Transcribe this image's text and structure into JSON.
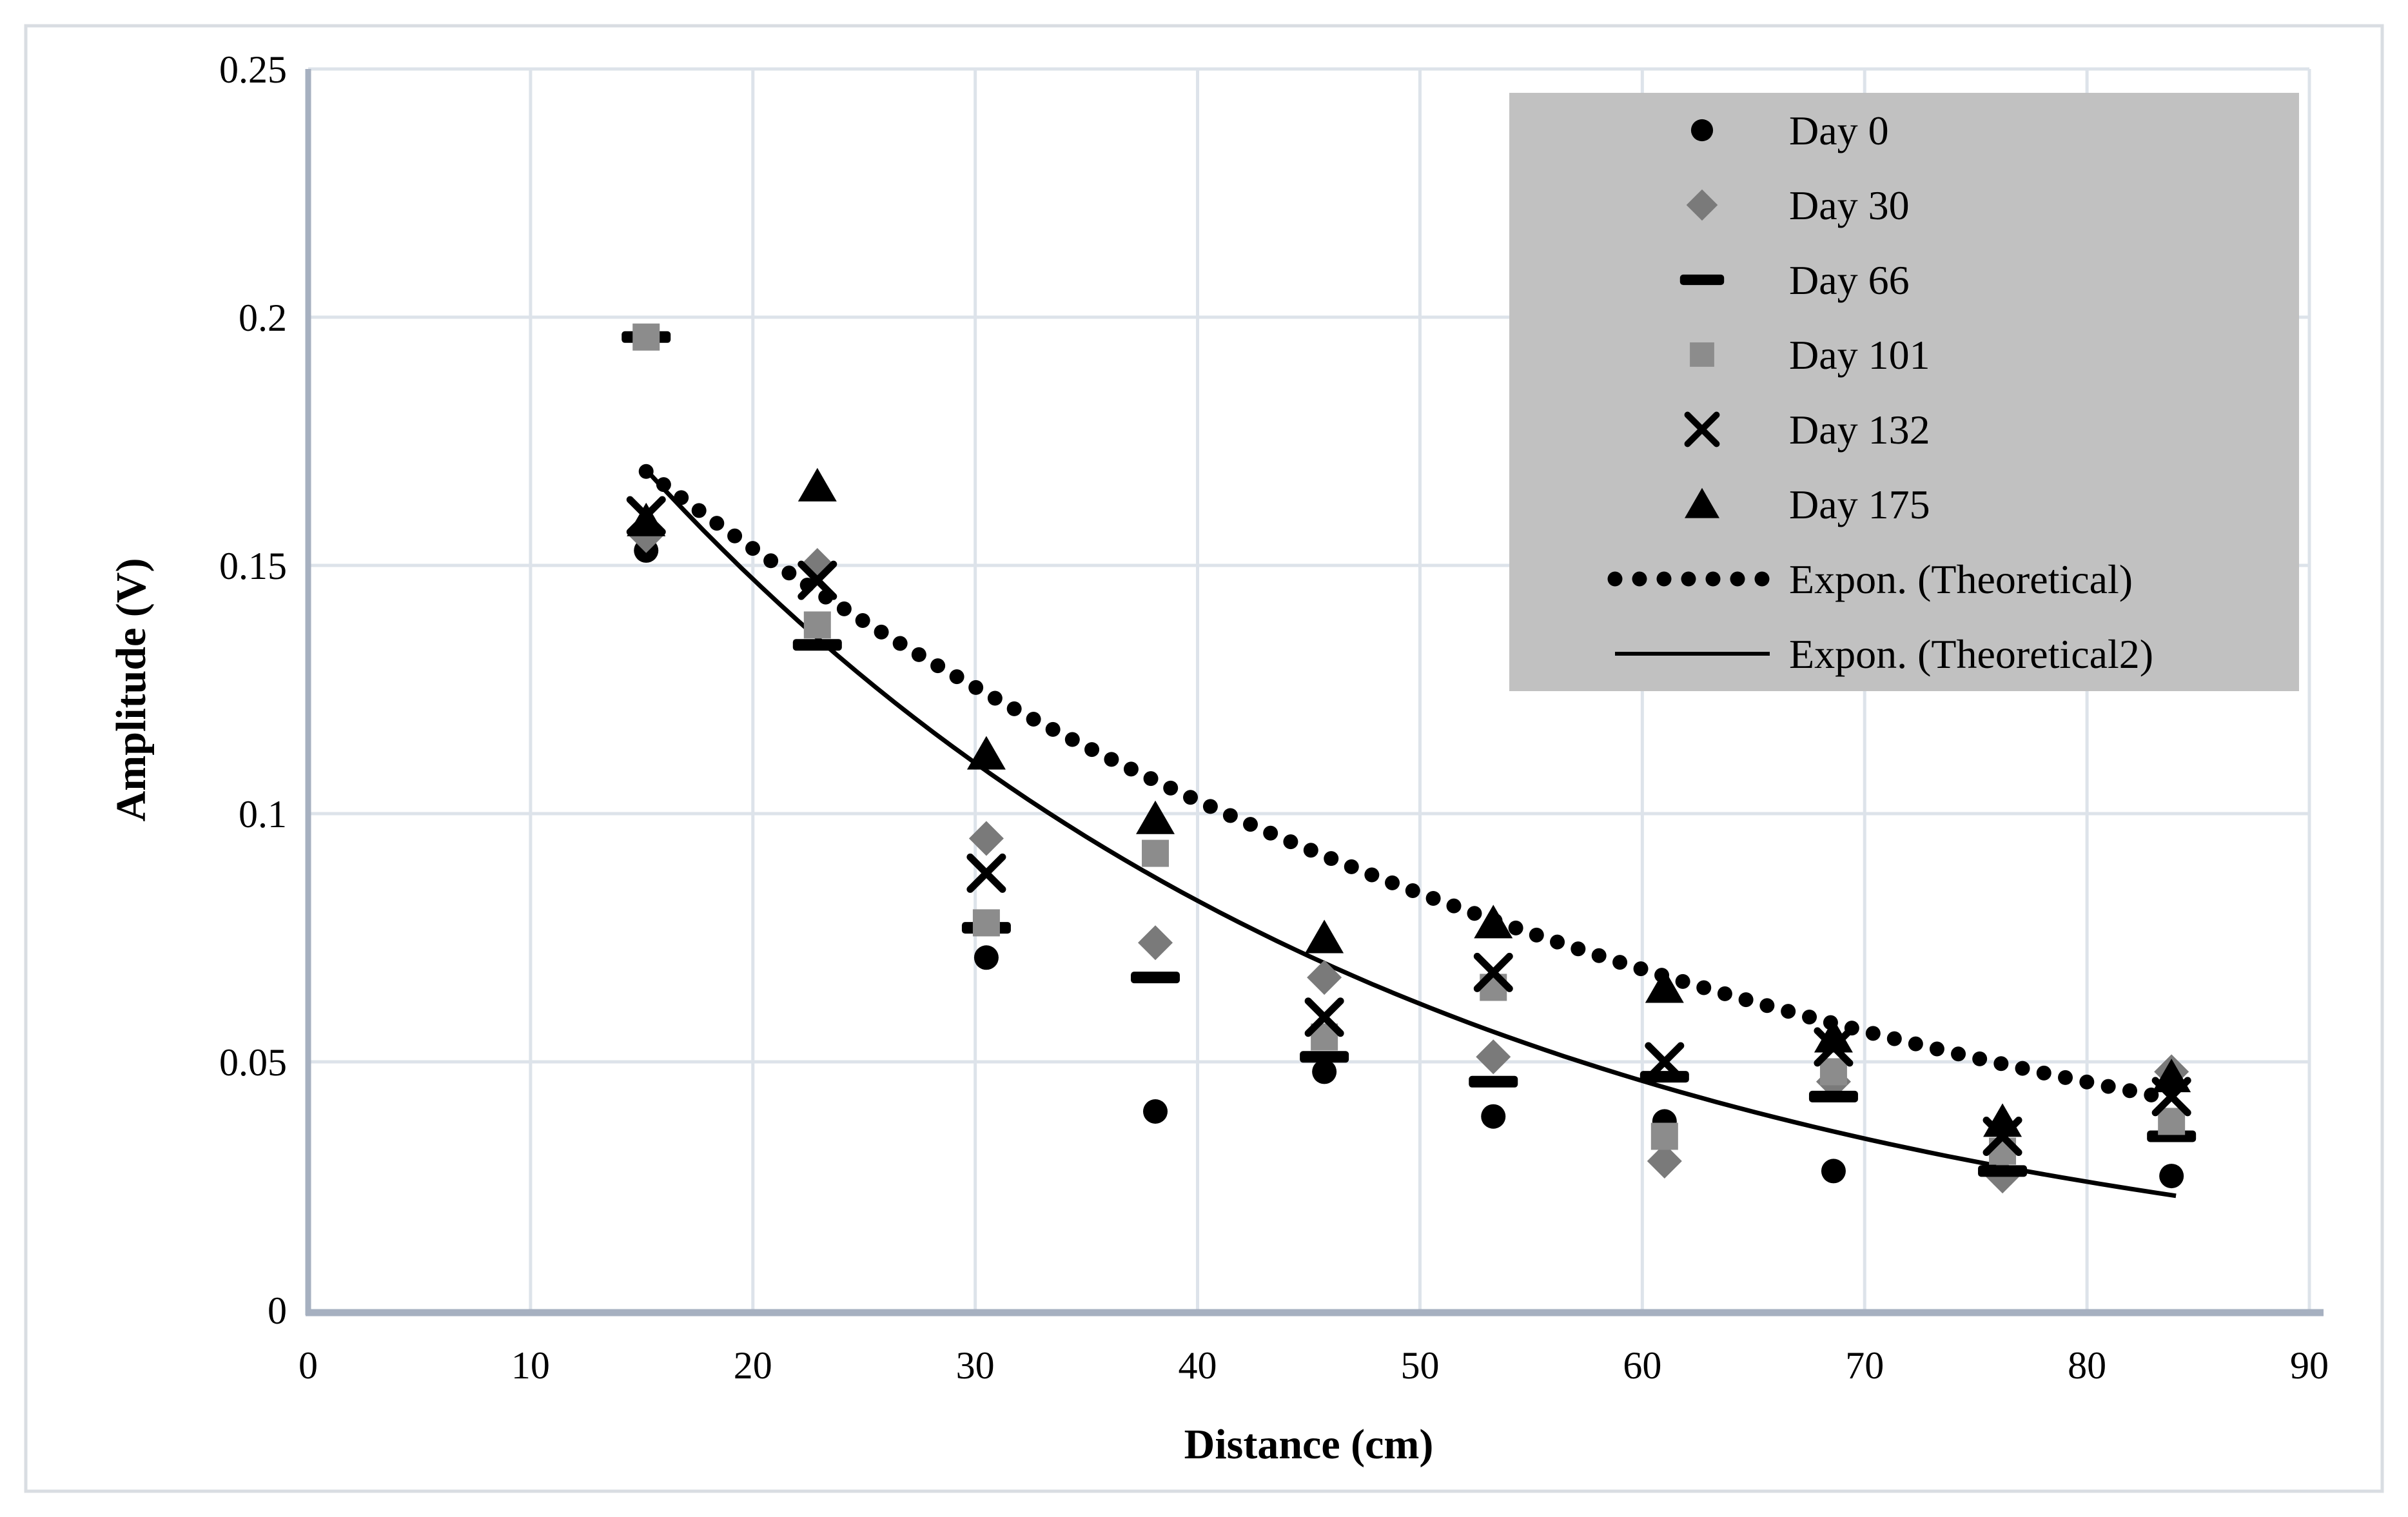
{
  "figure": {
    "background": "#ffffff",
    "border_color": "#d9dde2"
  },
  "chart_data": {
    "type": "scatter",
    "title": "",
    "xlabel": "Distance (cm)",
    "ylabel": "Amplitude (V)",
    "xlim": [
      0,
      90
    ],
    "ylim": [
      0,
      0.25
    ],
    "x_tick_values": [
      0,
      10,
      20,
      30,
      40,
      50,
      60,
      70,
      80,
      90
    ],
    "x_tick_labels": [
      "0",
      "10",
      "20",
      "30",
      "40",
      "50",
      "60",
      "70",
      "80",
      "90"
    ],
    "y_tick_values": [
      0,
      0.05,
      0.1,
      0.15,
      0.2,
      0.25
    ],
    "y_tick_labels": [
      "0",
      "0.05",
      "0.1",
      "0.15",
      "0.2",
      "0.25"
    ],
    "grid": true,
    "grid_color": "#dde3ea",
    "axis_color": "#a6b0c0",
    "text_color": "#000000",
    "legend_position": "top-right",
    "legend_bg": "#c1c1c1",
    "series": [
      {
        "name": "Day 0",
        "marker": "circle",
        "color": "#000000",
        "points": [
          [
            15.2,
            0.153
          ],
          [
            30.5,
            0.071
          ],
          [
            38.1,
            0.04
          ],
          [
            45.7,
            0.048
          ],
          [
            53.3,
            0.039
          ],
          [
            61.0,
            0.038
          ],
          [
            68.6,
            0.028
          ],
          [
            76.2,
            0.027
          ],
          [
            83.8,
            0.027
          ]
        ]
      },
      {
        "name": "Day 30",
        "marker": "diamond",
        "color": "#7a7a7a",
        "points": [
          [
            15.2,
            0.156
          ],
          [
            22.9,
            0.15
          ],
          [
            30.5,
            0.095
          ],
          [
            38.1,
            0.074
          ],
          [
            45.7,
            0.067
          ],
          [
            53.3,
            0.051
          ],
          [
            61.0,
            0.03
          ],
          [
            68.6,
            0.046
          ],
          [
            76.2,
            0.027
          ],
          [
            83.8,
            0.048
          ]
        ]
      },
      {
        "name": "Day 66",
        "marker": "dash",
        "color": "#000000",
        "points": [
          [
            15.2,
            0.196
          ],
          [
            22.9,
            0.134
          ],
          [
            30.5,
            0.077
          ],
          [
            38.1,
            0.067
          ],
          [
            45.7,
            0.051
          ],
          [
            53.3,
            0.046
          ],
          [
            61.0,
            0.047
          ],
          [
            68.6,
            0.043
          ],
          [
            76.2,
            0.028
          ],
          [
            83.8,
            0.035
          ]
        ]
      },
      {
        "name": "Day 101",
        "marker": "square",
        "color": "#8c8c8c",
        "points": [
          [
            15.2,
            0.196
          ],
          [
            22.9,
            0.138
          ],
          [
            30.5,
            0.078
          ],
          [
            38.1,
            0.092
          ],
          [
            45.7,
            0.055
          ],
          [
            53.3,
            0.065
          ],
          [
            61.0,
            0.035
          ],
          [
            68.6,
            0.048
          ],
          [
            76.2,
            0.032
          ],
          [
            83.8,
            0.038
          ]
        ]
      },
      {
        "name": "Day 132",
        "marker": "x",
        "color": "#000000",
        "points": [
          [
            15.2,
            0.16
          ],
          [
            22.9,
            0.147
          ],
          [
            30.5,
            0.088
          ],
          [
            45.7,
            0.059
          ],
          [
            53.3,
            0.068
          ],
          [
            61.0,
            0.05
          ],
          [
            68.6,
            0.053
          ],
          [
            76.2,
            0.035
          ],
          [
            83.8,
            0.043
          ]
        ]
      },
      {
        "name": "Day 175",
        "marker": "triangle",
        "color": "#000000",
        "points": [
          [
            15.2,
            0.159
          ],
          [
            22.9,
            0.166
          ],
          [
            30.5,
            0.112
          ],
          [
            38.1,
            0.099
          ],
          [
            45.7,
            0.075
          ],
          [
            53.3,
            0.078
          ],
          [
            61.0,
            0.065
          ],
          [
            68.6,
            0.055
          ],
          [
            76.2,
            0.038
          ],
          [
            83.8,
            0.047
          ]
        ]
      }
    ],
    "trendlines": [
      {
        "name": "Expon. (Theoretical)",
        "style": "dotted",
        "color": "#000000",
        "equation": "y = 0.2293 * exp(-0.0201 * x)",
        "coeff_a": 0.2293,
        "coeff_k": 0.0201,
        "x_start": 15.2,
        "x_end": 83.3
      },
      {
        "name": "Expon. (Theoretical2)",
        "style": "solid",
        "color": "#000000",
        "equation": "y = 0.2630 * exp(-0.0290 * x)",
        "coeff_a": 0.263,
        "coeff_k": 0.029,
        "x_start": 15.2,
        "x_end": 84.0
      }
    ]
  }
}
